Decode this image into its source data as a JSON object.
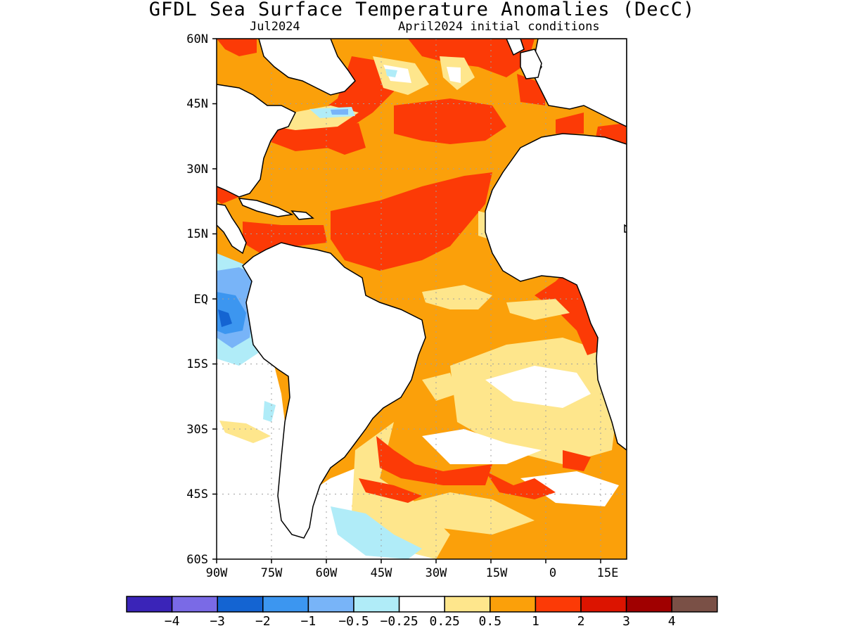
{
  "title": "GFDL Sea Surface Temperature Anomalies (DecC)",
  "subtitle_left": "Jul2024",
  "subtitle_right": "April2024 initial conditions",
  "axes": {
    "lat_labels": [
      "60N",
      "45N",
      "30N",
      "15N",
      "EQ",
      "15S",
      "30S",
      "45S",
      "60S"
    ],
    "lon_labels": [
      "90W",
      "75W",
      "60W",
      "45W",
      "30W",
      "15W",
      "0",
      "15E"
    ]
  },
  "colorbar": {
    "colors": [
      "#3a24b8",
      "#7a6ae6",
      "#1464d2",
      "#3c96f0",
      "#78b4f8",
      "#b0ecf8",
      "#ffffff",
      "#fee68c",
      "#fba00a",
      "#fc3a06",
      "#dc1400",
      "#a00000",
      "#7a5046"
    ],
    "labels": [
      "−4",
      "−3",
      "−2",
      "−1",
      "−0.5",
      "−0.25",
      "0.25",
      "0.5",
      "1",
      "2",
      "3",
      "4"
    ]
  },
  "palette": {
    "land": "#ffffff",
    "coast": "#000000",
    "grid": "#a0a0a0"
  }
}
